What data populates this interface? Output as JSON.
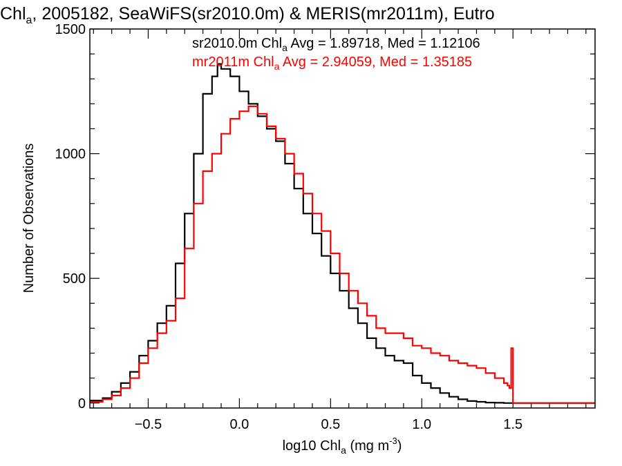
{
  "chart_data": {
    "type": "line",
    "title": {
      "pre": "Chl",
      "sub": "a",
      "post": ", 2005182, SeaWiFS(sr2010.0m) & MERIS(mr2011m), Eutro"
    },
    "xlabel": {
      "pre": "log10 Chl",
      "sub": "a",
      "mid": " (mg m",
      "sup": "-3",
      "post": ")"
    },
    "ylabel": "Number of Observations",
    "xlim": [
      -0.82,
      1.95
    ],
    "ylim": [
      -20,
      1500
    ],
    "xticks": [
      -0.5,
      0.0,
      0.5,
      1.0,
      1.5
    ],
    "xtick_labels": [
      "−0.5",
      "0.0",
      "0.5",
      "1.0",
      "1.5"
    ],
    "yticks": [
      0,
      500,
      1000,
      1500
    ],
    "ytick_labels": [
      "0",
      "500",
      "1000",
      "1500"
    ],
    "grid": false,
    "legend_position": "top",
    "series": [
      {
        "name": "sr2010.0m",
        "legend": {
          "pre": "sr2010.0m Chl",
          "sub": "a",
          "post": " Avg = 1.89718, Med = 1.12106"
        },
        "color": "#000000",
        "x": [
          -0.82,
          -0.75,
          -0.7,
          -0.65,
          -0.6,
          -0.55,
          -0.5,
          -0.45,
          -0.4,
          -0.35,
          -0.3,
          -0.25,
          -0.2,
          -0.15,
          -0.12,
          -0.1,
          -0.05,
          0.0,
          0.05,
          0.1,
          0.15,
          0.2,
          0.25,
          0.3,
          0.35,
          0.4,
          0.45,
          0.5,
          0.55,
          0.6,
          0.65,
          0.7,
          0.75,
          0.8,
          0.85,
          0.9,
          0.95,
          1.0,
          1.05,
          1.1,
          1.15,
          1.2,
          1.25,
          1.3,
          1.35,
          1.4,
          1.45,
          1.49,
          1.5,
          1.95
        ],
        "y": [
          10,
          20,
          45,
          80,
          125,
          190,
          250,
          320,
          390,
          560,
          760,
          1000,
          1240,
          1310,
          1360,
          1340,
          1310,
          1250,
          1200,
          1150,
          1100,
          1050,
          960,
          860,
          760,
          680,
          590,
          520,
          450,
          380,
          320,
          260,
          220,
          190,
          170,
          160,
          110,
          80,
          60,
          40,
          25,
          15,
          8,
          5,
          2,
          1,
          0,
          0,
          0,
          0
        ]
      },
      {
        "name": "mr2011m",
        "legend": {
          "pre": "mr2011m Chl",
          "sub": "a",
          "post": " Avg = 2.94059, Med = 1.35185"
        },
        "color": "#ff0000",
        "x": [
          -0.82,
          -0.75,
          -0.7,
          -0.65,
          -0.6,
          -0.55,
          -0.5,
          -0.45,
          -0.4,
          -0.35,
          -0.3,
          -0.25,
          -0.2,
          -0.15,
          -0.1,
          -0.05,
          0.0,
          0.05,
          0.1,
          0.15,
          0.2,
          0.25,
          0.3,
          0.35,
          0.4,
          0.45,
          0.5,
          0.55,
          0.6,
          0.65,
          0.7,
          0.75,
          0.8,
          0.85,
          0.9,
          0.95,
          1.0,
          1.05,
          1.1,
          1.15,
          1.2,
          1.25,
          1.3,
          1.35,
          1.4,
          1.45,
          1.47,
          1.48,
          1.49,
          1.5,
          1.95
        ],
        "y": [
          5,
          15,
          30,
          60,
          100,
          160,
          220,
          280,
          330,
          420,
          620,
          800,
          930,
          1000,
          1080,
          1140,
          1170,
          1190,
          1160,
          1110,
          1060,
          1000,
          920,
          840,
          760,
          690,
          600,
          520,
          450,
          400,
          350,
          300,
          280,
          280,
          260,
          230,
          220,
          200,
          190,
          170,
          160,
          150,
          140,
          120,
          100,
          80,
          70,
          60,
          220,
          0,
          0
        ]
      }
    ]
  }
}
